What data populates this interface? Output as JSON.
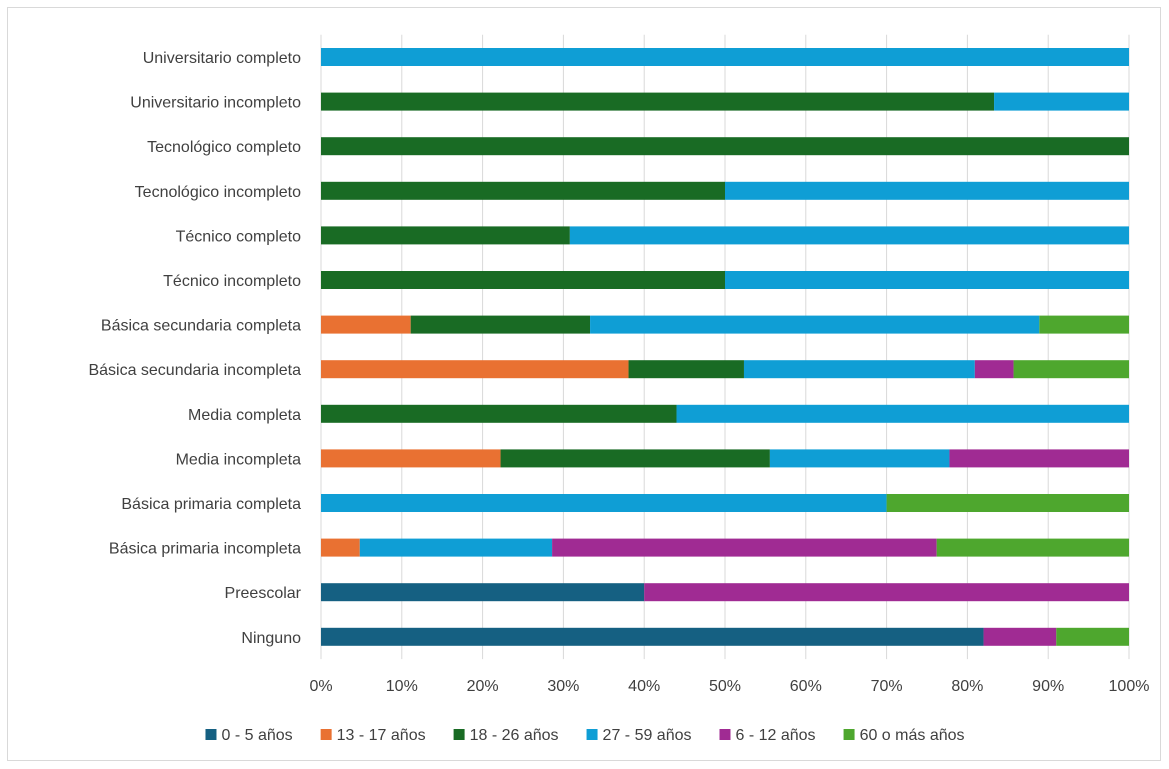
{
  "chart_data": {
    "type": "bar",
    "orientation": "horizontal",
    "stacked": "percent",
    "categories": [
      "Universitario completo",
      "Universitario incompleto",
      "Tecnológico completo",
      "Tecnológico incompleto",
      "Técnico completo",
      "Técnico incompleto",
      "Básica secundaria completa",
      "Básica secundaria incompleta",
      "Media completa",
      "Media incompleta",
      "Básica primaria completa",
      "Básica primaria incompleta",
      "Preescolar",
      "Ninguno"
    ],
    "series": [
      {
        "name": "0 - 5 años",
        "color": "#156082",
        "values": [
          0,
          0,
          0,
          0,
          0,
          0,
          0,
          0,
          0,
          0,
          0,
          0,
          40,
          82
        ]
      },
      {
        "name": "13 - 17 años",
        "color": "#e97132",
        "values": [
          0,
          0,
          0,
          0,
          0,
          0,
          11.1,
          38.1,
          0,
          22.2,
          0,
          4.8,
          0,
          0
        ]
      },
      {
        "name": "18 - 26 años",
        "color": "#196b24",
        "values": [
          0,
          83.3,
          100,
          50,
          30.8,
          50,
          22.2,
          14.3,
          44,
          33.3,
          0,
          0,
          0,
          0
        ]
      },
      {
        "name": "27 - 59 años",
        "color": "#0f9ed5",
        "values": [
          100,
          16.7,
          0,
          50,
          69.2,
          50,
          55.6,
          28.6,
          56,
          22.2,
          70,
          23.8,
          0,
          0
        ]
      },
      {
        "name": "6 - 12 años",
        "color": "#a02b93",
        "values": [
          0,
          0,
          0,
          0,
          0,
          0,
          0,
          4.8,
          0,
          22.2,
          0,
          47.6,
          60,
          9
        ]
      },
      {
        "name": "60 o más años",
        "color": "#4ea72e",
        "values": [
          0,
          0,
          0,
          0,
          0,
          0,
          11.1,
          14.3,
          0,
          0,
          30,
          23.8,
          0,
          9
        ]
      }
    ],
    "xlim": [
      0,
      100
    ],
    "x_ticks": [
      "0%",
      "10%",
      "20%",
      "30%",
      "40%",
      "50%",
      "60%",
      "70%",
      "80%",
      "90%",
      "100%"
    ],
    "grid": "vertical",
    "legend_position": "bottom",
    "title": "",
    "xlabel": "",
    "ylabel": ""
  }
}
